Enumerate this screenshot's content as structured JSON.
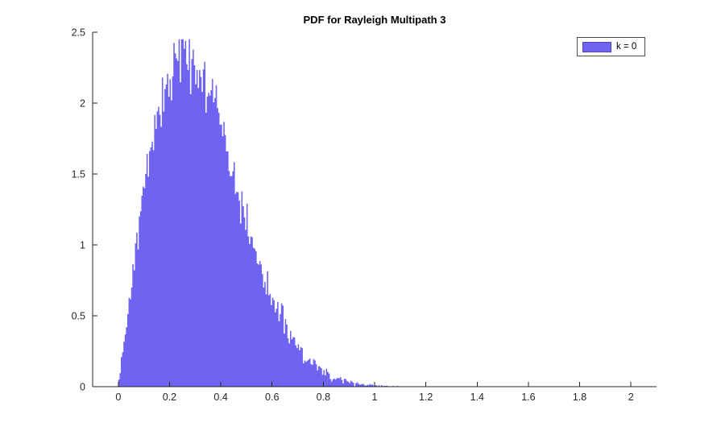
{
  "chart_data": {
    "type": "histogram",
    "title": "PDF for Rayleigh Multipath 3",
    "xlabel": "",
    "ylabel": "",
    "xlim": [
      -0.1,
      2.1
    ],
    "ylim": [
      0,
      2.5
    ],
    "x_ticks": [
      0,
      0.2,
      0.4,
      0.6,
      0.8,
      1,
      1.2,
      1.4,
      1.6,
      1.8,
      2
    ],
    "x_tick_labels": [
      "0",
      "0.2",
      "0.4",
      "0.6",
      "0.8",
      "1",
      "1.2",
      "1.4",
      "1.6",
      "1.8",
      "2"
    ],
    "y_ticks": [
      0,
      0.5,
      1,
      1.5,
      2,
      2.5
    ],
    "y_tick_labels": [
      "0",
      "0.5",
      "1",
      "1.5",
      "2",
      "2.5"
    ],
    "grid": false,
    "legend": {
      "label": "k = 0",
      "position": "northeast"
    },
    "series": [
      {
        "name": "k = 0",
        "distribution": "rayleigh",
        "sigma": 0.26,
        "mode_x": 0.26,
        "peak_density": 2.45,
        "bin_width": 0.005,
        "x_min": 0,
        "x_max": 1.5,
        "noise_amp": 0.045,
        "noise_seed": 42,
        "fill_color": "#6f63f2"
      }
    ],
    "colors": {
      "axis": "#262626",
      "background": "#ffffff",
      "bar_fill": "#6f63f2",
      "legend_border": "#4d4d4d",
      "legend_swatch_edge": "#4a42c8"
    }
  }
}
